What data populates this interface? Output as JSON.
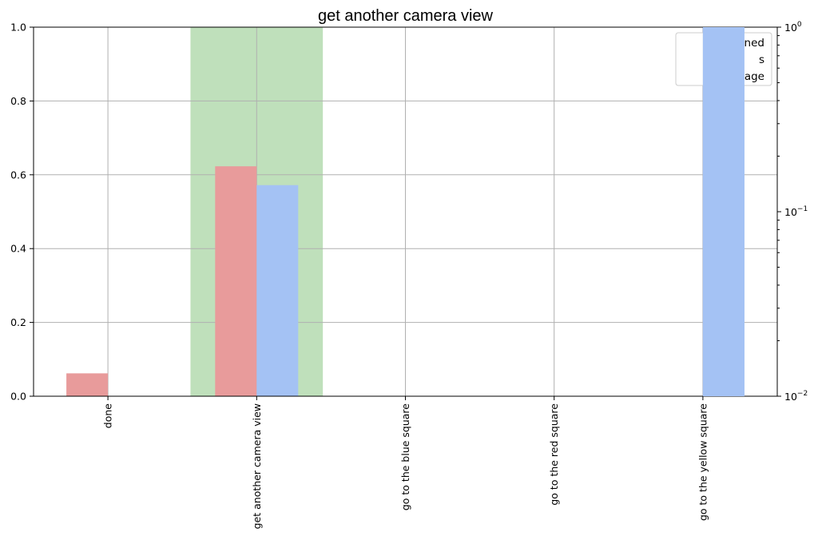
{
  "chart_data": {
    "type": "bar",
    "title": "get another camera view",
    "xlabel": "",
    "ylabel": "",
    "categories": [
      "done",
      "get another camera view",
      "go to the blue square",
      "go to the red square",
      "go to the yellow square"
    ],
    "ylim": [
      0,
      1
    ],
    "y_ticks": [
      "0.0",
      "0.2",
      "0.4",
      "0.6",
      "0.8",
      "1.0"
    ],
    "y2_scale": "log",
    "y2lim": [
      0.01,
      1
    ],
    "y2_ticks": [
      {
        "base": "10",
        "exp": "−2",
        "value": 0.01
      },
      {
        "base": "10",
        "exp": "−1",
        "value": 0.1
      },
      {
        "base": "10",
        "exp": "0",
        "value": 1
      }
    ],
    "grid": true,
    "legend_position": "top-right",
    "legend_entries": [
      "ombined",
      "s",
      "nguage"
    ],
    "highlight": {
      "category": "get another camera view",
      "color": "#bfe0bb"
    },
    "series": [
      {
        "values": [
          0.062,
          0.623,
          0,
          0,
          0
        ],
        "color": "#e89b9b"
      },
      {
        "values": [
          0,
          0.572,
          0,
          0,
          1.0
        ],
        "color": "#a4c2f4"
      }
    ]
  }
}
